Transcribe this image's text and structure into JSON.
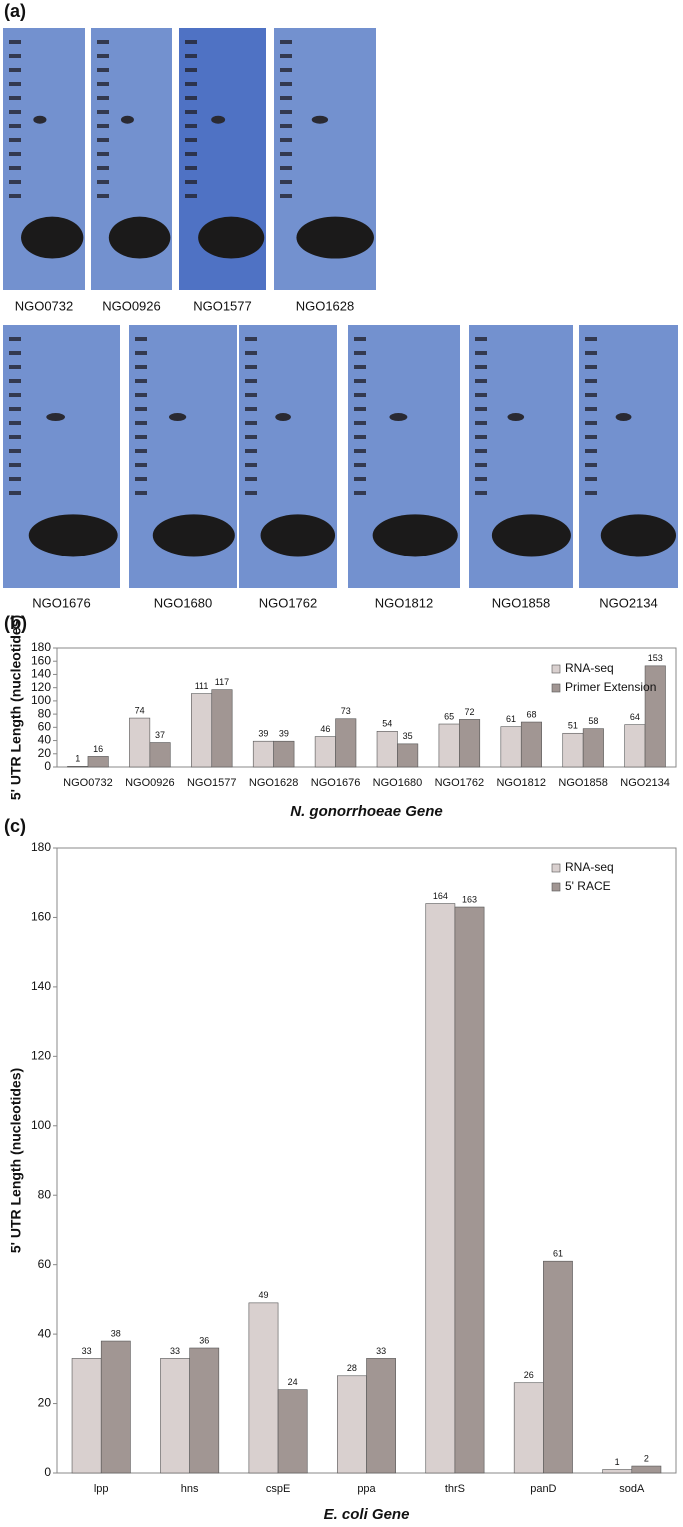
{
  "panel_a": {
    "label": "(a)",
    "gels": [
      "NGO0732",
      "NGO0926",
      "NGO1577",
      "NGO1628",
      "NGO1676",
      "NGO1680",
      "NGO1762",
      "NGO1812",
      "NGO1858",
      "NGO2134"
    ]
  },
  "chart_data": [
    {
      "type": "bar",
      "panel_label": "(b)",
      "y_label": "5' UTR Length (nucleotides)",
      "x_label": "N. gonorrhoeae Gene",
      "categories": [
        "NGO0732",
        "NGO0926",
        "NGO1577",
        "NGO1628",
        "NGO1676",
        "NGO1680",
        "NGO1762",
        "NGO1812",
        "NGO1858",
        "NGO2134"
      ],
      "series": [
        {
          "name": "RNA-seq",
          "color": "#d9d0cf",
          "values": [
            1,
            74,
            111,
            39,
            46,
            54,
            65,
            61,
            51,
            64
          ]
        },
        {
          "name": "Primer Extension",
          "color": "#a19693",
          "values": [
            16,
            37,
            117,
            39,
            73,
            35,
            72,
            68,
            58,
            153
          ]
        }
      ],
      "ylim": [
        0,
        180
      ],
      "yticks": [
        0,
        20,
        40,
        60,
        80,
        100,
        120,
        140,
        160,
        180
      ],
      "grid": false,
      "legend": "upper right",
      "data_labels": true
    },
    {
      "type": "bar",
      "panel_label": "(c)",
      "y_label": "5' UTR Length (nucleotides)",
      "x_label": "E. coli Gene",
      "categories": [
        "lpp",
        "hns",
        "cspE",
        "ppa",
        "thrS",
        "panD",
        "sodA"
      ],
      "series": [
        {
          "name": "RNA-seq",
          "color": "#d9d0cf",
          "values": [
            33,
            33,
            49,
            28,
            164,
            26,
            1
          ]
        },
        {
          "name": "5' RACE",
          "color": "#a19693",
          "values": [
            38,
            36,
            24,
            33,
            163,
            61,
            2
          ]
        }
      ],
      "ylim": [
        0,
        180
      ],
      "yticks": [
        0,
        20,
        40,
        60,
        80,
        100,
        120,
        140,
        160,
        180
      ],
      "grid": false,
      "legend": "upper right",
      "data_labels": true
    }
  ]
}
